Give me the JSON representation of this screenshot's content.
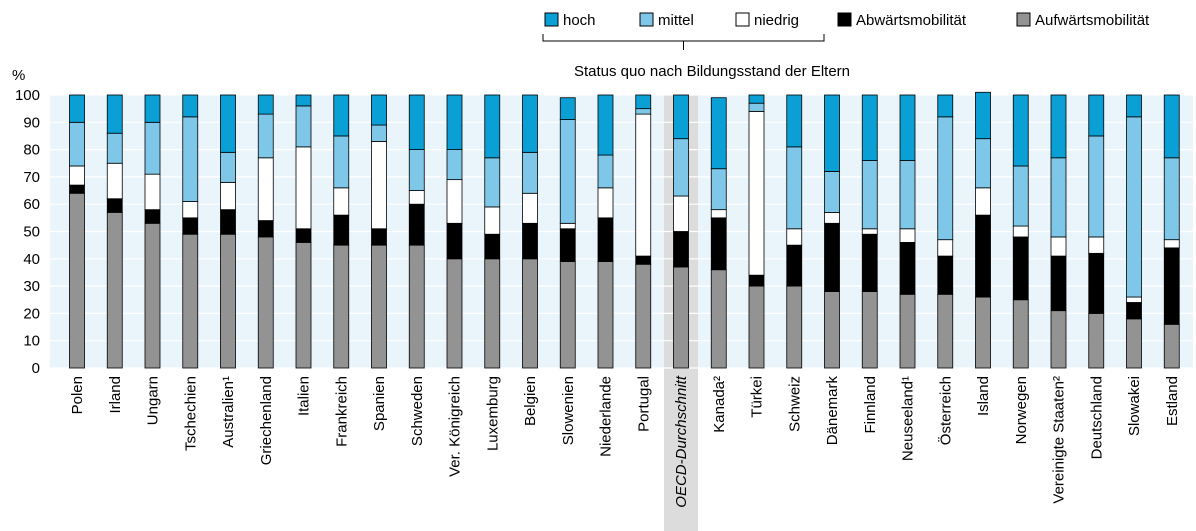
{
  "chart_data": {
    "type": "bar",
    "stacked": true,
    "y_unit_label": "%",
    "ylim": [
      0,
      100
    ],
    "y_ticks": [
      0,
      10,
      20,
      30,
      40,
      50,
      60,
      70,
      80,
      90,
      100
    ],
    "grid": true,
    "legend_placement": "top-right",
    "legend_bracket_label": "Status quo nach Bildungsstand der Eltern",
    "categories": [
      "Polen",
      "Irland",
      "Ungarn",
      "Tschechien",
      "Australien¹",
      "Griechenland",
      "Italien",
      "Frankreich",
      "Spanien",
      "Schweden",
      "Ver. Königreich",
      "Luxemburg",
      "Belgien",
      "Slowenien",
      "Niederlande",
      "Portugal",
      "OECD-Durchschnitt",
      "Kanada²",
      "Türkei",
      "Schweiz",
      "Dänemark",
      "Finnland",
      "Neuseeland¹",
      "Österreich",
      "Island",
      "Norwegen",
      "Vereinigte Staaten²",
      "Deutschland",
      "Slowakei",
      "Estland"
    ],
    "highlight_category": "OECD-Durchschnitt",
    "series": [
      {
        "name": "Aufwärtsmobilität",
        "color": "#939393",
        "values": [
          64,
          57,
          53,
          49,
          49,
          48,
          46,
          45,
          45,
          45,
          40,
          40,
          40,
          39,
          39,
          38,
          37,
          36,
          30,
          30,
          28,
          28,
          27,
          27,
          26,
          25,
          21,
          20,
          18,
          16
        ]
      },
      {
        "name": "Abwärtsmobilität",
        "color": "#000000",
        "values": [
          3,
          5,
          5,
          6,
          9,
          6,
          5,
          11,
          6,
          15,
          13,
          9,
          13,
          12,
          16,
          3,
          13,
          19,
          4,
          15,
          25,
          21,
          19,
          14,
          30,
          23,
          20,
          22,
          6,
          28
        ]
      },
      {
        "name": "niedrig",
        "color": "#ffffff",
        "values": [
          7,
          13,
          13,
          6,
          10,
          23,
          30,
          10,
          32,
          5,
          16,
          10,
          11,
          2,
          11,
          52,
          13,
          3,
          60,
          6,
          4,
          2,
          5,
          6,
          10,
          4,
          7,
          6,
          2,
          3
        ]
      },
      {
        "name": "mittel",
        "color": "#7fc7e8",
        "values": [
          16,
          11,
          19,
          31,
          11,
          16,
          15,
          19,
          6,
          15,
          11,
          18,
          15,
          38,
          12,
          2,
          21,
          15,
          3,
          30,
          15,
          25,
          25,
          45,
          18,
          22,
          29,
          37,
          66,
          30
        ]
      },
      {
        "name": "hoch",
        "color": "#0a9fd5",
        "values": [
          10,
          14,
          10,
          8,
          21,
          7,
          4,
          15,
          11,
          20,
          20,
          23,
          21,
          8,
          22,
          5,
          16,
          26,
          3,
          19,
          28,
          24,
          24,
          8,
          17,
          26,
          23,
          15,
          8,
          23
        ]
      }
    ],
    "legend_order": [
      "hoch",
      "mittel",
      "niedrig",
      "Abwärtsmobilität",
      "Aufwärtsmobilität"
    ]
  }
}
